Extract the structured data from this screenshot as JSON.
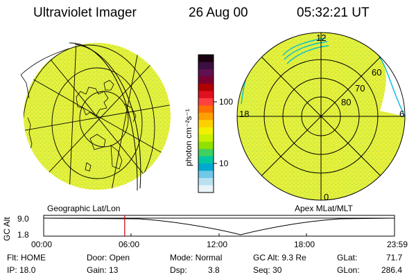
{
  "header": {
    "title": "Ultraviolet Imager",
    "date": "26 Aug 00",
    "time": "05:32:21 UT"
  },
  "colorbar": {
    "label": "photon cm⁻²s⁻¹",
    "ticks": [
      "100",
      "10"
    ],
    "colors": [
      "#1a0010",
      "#3a1040",
      "#601050",
      "#7a0030",
      "#b00000",
      "#e01020",
      "#ff4040",
      "#ff7000",
      "#ffa000",
      "#ffd000",
      "#f0f000",
      "#c8f000",
      "#90e000",
      "#40d060",
      "#00c8a0",
      "#00a8d0",
      "#70c8e8",
      "#b8e0f0",
      "#e8f4f8"
    ]
  },
  "geo_panel": {
    "label": "Geographic Lat/Lon",
    "fill": "#e4f03c"
  },
  "mag_panel": {
    "label": "Apex MLat/MLT",
    "lat_labels": [
      "60",
      "70",
      "80"
    ],
    "mlt_labels": {
      "top": "12",
      "left": "18",
      "right": "6",
      "bottom": "0"
    }
  },
  "timeline": {
    "ylabel": "GC Alt",
    "yvals": [
      "9.0",
      "1.8"
    ],
    "xticks": [
      "00:00",
      "06:00",
      "12:00",
      "18:00",
      "23:59"
    ],
    "marker_time_hours": 5.54,
    "marker_color": "#cc0000"
  },
  "status": {
    "flt": "Flt: HOME",
    "ip": "IP: 18.0",
    "door": "Door: Open",
    "gain": "Gain: 13",
    "mode": "Mode: Normal",
    "dsp_label": "Dsp:",
    "dsp_value": "3.8",
    "gcalt": "GC Alt: 9.3 Re",
    "seq": "Seq: 30",
    "glat_label": "GLat:",
    "glat_value": "71.7",
    "glon_label": "GLon:",
    "glon_value": "286.4"
  }
}
